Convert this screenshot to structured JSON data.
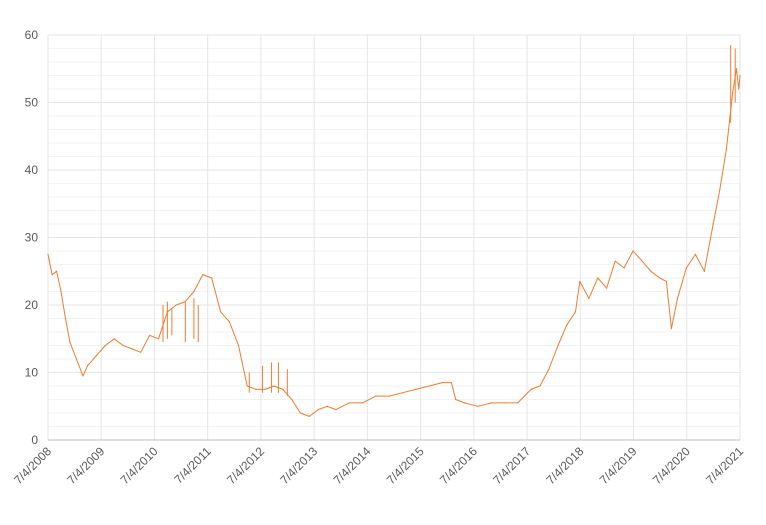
{
  "chart_data": {
    "type": "line",
    "title": "",
    "xlabel": "",
    "ylabel": "",
    "grid": true,
    "legend": "none",
    "xlim": [
      "2008-07-04",
      "2021-07-04"
    ],
    "ylim": [
      0,
      60
    ],
    "y_ticks": [
      "0",
      "10",
      "20",
      "30",
      "40",
      "50",
      "60"
    ],
    "x_ticks": [
      "7/4/2008",
      "7/4/2009",
      "7/4/2010",
      "7/4/2011",
      "7/4/2012",
      "7/4/2013",
      "7/4/2014",
      "7/4/2015",
      "7/4/2016",
      "7/4/2017",
      "7/4/2018",
      "7/4/2019",
      "7/4/2020",
      "7/4/2021"
    ],
    "series": [
      {
        "color": "#ED7D31",
        "points": [
          [
            "2008-07-04",
            27.5
          ],
          [
            "2008-08-01",
            24.5
          ],
          [
            "2008-09-01",
            25.0
          ],
          [
            "2008-10-01",
            22.0
          ],
          [
            "2008-11-01",
            18.0
          ],
          [
            "2008-12-01",
            14.5
          ],
          [
            "2009-01-15",
            12.0
          ],
          [
            "2009-03-01",
            9.5
          ],
          [
            "2009-04-01",
            11.0
          ],
          [
            "2009-06-01",
            12.5
          ],
          [
            "2009-08-01",
            14.0
          ],
          [
            "2009-10-01",
            15.0
          ],
          [
            "2009-12-01",
            14.0
          ],
          [
            "2010-02-01",
            13.5
          ],
          [
            "2010-04-01",
            13.0
          ],
          [
            "2010-06-01",
            15.5
          ],
          [
            "2010-08-01",
            15.0
          ],
          [
            "2010-10-01",
            19.0
          ],
          [
            "2010-12-01",
            20.0
          ],
          [
            "2011-02-01",
            20.5
          ],
          [
            "2011-04-01",
            22.0
          ],
          [
            "2011-06-01",
            24.5
          ],
          [
            "2011-08-01",
            24.0
          ],
          [
            "2011-10-01",
            19.0
          ],
          [
            "2011-12-01",
            17.5
          ],
          [
            "2012-02-01",
            14.0
          ],
          [
            "2012-04-01",
            8.0
          ],
          [
            "2012-06-01",
            7.5
          ],
          [
            "2012-08-01",
            7.5
          ],
          [
            "2012-10-01",
            8.0
          ],
          [
            "2012-12-01",
            7.5
          ],
          [
            "2013-02-01",
            6.0
          ],
          [
            "2013-04-01",
            4.0
          ],
          [
            "2013-06-01",
            3.5
          ],
          [
            "2013-08-01",
            4.5
          ],
          [
            "2013-10-01",
            5.0
          ],
          [
            "2013-12-01",
            4.5
          ],
          [
            "2014-03-01",
            5.5
          ],
          [
            "2014-06-01",
            5.5
          ],
          [
            "2014-09-01",
            6.5
          ],
          [
            "2014-12-01",
            6.5
          ],
          [
            "2015-03-01",
            7.0
          ],
          [
            "2015-06-01",
            7.5
          ],
          [
            "2015-09-01",
            8.0
          ],
          [
            "2015-12-01",
            8.5
          ],
          [
            "2016-02-01",
            8.5
          ],
          [
            "2016-03-01",
            6.0
          ],
          [
            "2016-05-01",
            5.5
          ],
          [
            "2016-08-01",
            5.0
          ],
          [
            "2016-11-01",
            5.5
          ],
          [
            "2017-02-01",
            5.5
          ],
          [
            "2017-05-01",
            5.5
          ],
          [
            "2017-08-01",
            7.5
          ],
          [
            "2017-10-01",
            8.0
          ],
          [
            "2017-12-01",
            10.5
          ],
          [
            "2018-02-01",
            14.0
          ],
          [
            "2018-04-01",
            17.0
          ],
          [
            "2018-06-01",
            19.0
          ],
          [
            "2018-07-01",
            23.5
          ],
          [
            "2018-09-01",
            21.0
          ],
          [
            "2018-11-01",
            24.0
          ],
          [
            "2019-01-01",
            22.5
          ],
          [
            "2019-03-01",
            26.5
          ],
          [
            "2019-05-01",
            25.5
          ],
          [
            "2019-07-01",
            28.0
          ],
          [
            "2019-09-01",
            26.5
          ],
          [
            "2019-11-01",
            25.0
          ],
          [
            "2020-01-01",
            24.0
          ],
          [
            "2020-02-15",
            23.5
          ],
          [
            "2020-03-20",
            16.5
          ],
          [
            "2020-05-01",
            21.0
          ],
          [
            "2020-07-01",
            25.5
          ],
          [
            "2020-09-01",
            27.5
          ],
          [
            "2020-11-01",
            25.0
          ],
          [
            "2021-01-01",
            32.0
          ],
          [
            "2021-02-15",
            37.0
          ],
          [
            "2021-04-01",
            43.0
          ],
          [
            "2021-05-15",
            51.5
          ],
          [
            "2021-06-10",
            55.0
          ],
          [
            "2021-06-25",
            52.0
          ],
          [
            "2021-07-04",
            54.0
          ]
        ],
        "spikes": [
          [
            "2010-09-01",
            14.5,
            20.0
          ],
          [
            "2010-10-01",
            15.0,
            20.5
          ],
          [
            "2010-11-01",
            15.5,
            19.5
          ],
          [
            "2011-02-01",
            14.5,
            20.5
          ],
          [
            "2011-04-01",
            15.0,
            21.0
          ],
          [
            "2011-05-01",
            14.5,
            20.0
          ],
          [
            "2012-04-15",
            7.0,
            10.0
          ],
          [
            "2012-07-15",
            7.0,
            11.0
          ],
          [
            "2012-09-15",
            7.0,
            11.5
          ],
          [
            "2012-11-01",
            7.0,
            11.5
          ],
          [
            "2013-01-01",
            6.5,
            10.5
          ],
          [
            "2021-05-01",
            47.0,
            58.5
          ],
          [
            "2021-06-01",
            50.0,
            58.0
          ]
        ]
      }
    ]
  }
}
